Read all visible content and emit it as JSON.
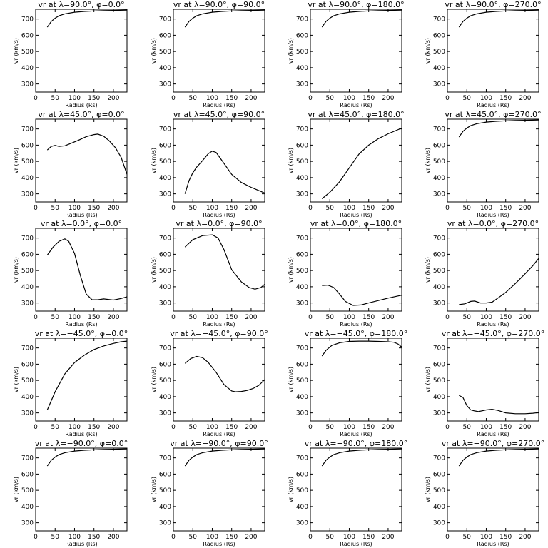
{
  "figure": {
    "xlabel": "Radius (Rs)",
    "ylabel": "vr (km/s)",
    "xticks": [
      0,
      50,
      100,
      150,
      200
    ],
    "yticks": [
      300,
      400,
      500,
      600,
      700
    ],
    "xlim": [
      0,
      235
    ],
    "ylim": [
      250,
      760
    ]
  },
  "chart_data": [
    {
      "type": "line",
      "title": "vr at λ=90.0°, φ=0.0°",
      "xlabel": "Radius (Rs)",
      "ylabel": "vr (km/s)",
      "xlim": [
        0,
        235
      ],
      "ylim": [
        250,
        760
      ],
      "series": [
        {
          "x": [
            30,
            40,
            50,
            60,
            75,
            100,
            125,
            150,
            175,
            200,
            235
          ],
          "y": [
            650,
            685,
            705,
            720,
            732,
            742,
            747,
            750,
            752,
            753,
            755
          ]
        }
      ]
    },
    {
      "type": "line",
      "title": "vr at λ=90.0°, φ=90.0°",
      "xlabel": "Radius (Rs)",
      "ylabel": "vr (km/s)",
      "xlim": [
        0,
        235
      ],
      "ylim": [
        250,
        760
      ],
      "series": [
        {
          "x": [
            30,
            40,
            50,
            60,
            75,
            100,
            125,
            150,
            175,
            200,
            235
          ],
          "y": [
            650,
            685,
            705,
            720,
            732,
            742,
            747,
            750,
            752,
            753,
            755
          ]
        }
      ]
    },
    {
      "type": "line",
      "title": "vr at λ=90.0°, φ=180.0°",
      "xlabel": "Radius (Rs)",
      "ylabel": "vr (km/s)",
      "xlim": [
        0,
        235
      ],
      "ylim": [
        250,
        760
      ],
      "series": [
        {
          "x": [
            30,
            40,
            50,
            60,
            75,
            100,
            125,
            150,
            175,
            200,
            235
          ],
          "y": [
            650,
            685,
            705,
            720,
            732,
            742,
            747,
            750,
            752,
            753,
            755
          ]
        }
      ]
    },
    {
      "type": "line",
      "title": "vr at λ=90.0°, φ=270.0°",
      "xlabel": "Radius (Rs)",
      "ylabel": "vr (km/s)",
      "xlim": [
        0,
        235
      ],
      "ylim": [
        250,
        760
      ],
      "series": [
        {
          "x": [
            30,
            40,
            50,
            60,
            75,
            100,
            125,
            150,
            175,
            200,
            235
          ],
          "y": [
            650,
            685,
            705,
            720,
            732,
            742,
            747,
            750,
            752,
            753,
            755
          ]
        }
      ]
    },
    {
      "type": "line",
      "title": "vr at λ=45.0°, φ=0.0°",
      "xlabel": "Radius (Rs)",
      "ylabel": "vr (km/s)",
      "xlim": [
        0,
        235
      ],
      "ylim": [
        250,
        760
      ],
      "series": [
        {
          "x": [
            30,
            40,
            50,
            60,
            75,
            90,
            110,
            130,
            150,
            160,
            175,
            190,
            205,
            220,
            235
          ],
          "y": [
            570,
            592,
            598,
            592,
            596,
            610,
            630,
            652,
            665,
            668,
            655,
            625,
            585,
            525,
            420
          ]
        }
      ]
    },
    {
      "type": "line",
      "title": "vr at λ=45.0°, φ=90.0°",
      "xlabel": "Radius (Rs)",
      "ylabel": "vr (km/s)",
      "xlim": [
        0,
        235
      ],
      "ylim": [
        250,
        760
      ],
      "series": [
        {
          "x": [
            30,
            40,
            50,
            60,
            75,
            90,
            100,
            110,
            125,
            150,
            175,
            200,
            220,
            235
          ],
          "y": [
            300,
            380,
            430,
            465,
            505,
            548,
            563,
            555,
            505,
            420,
            370,
            340,
            320,
            305
          ]
        }
      ]
    },
    {
      "type": "line",
      "title": "vr at λ=45.0°, φ=180.0°",
      "xlabel": "Radius (Rs)",
      "ylabel": "vr (km/s)",
      "xlim": [
        0,
        235
      ],
      "ylim": [
        250,
        760
      ],
      "series": [
        {
          "x": [
            30,
            50,
            75,
            100,
            125,
            150,
            175,
            200,
            235
          ],
          "y": [
            270,
            310,
            375,
            460,
            545,
            600,
            640,
            670,
            705
          ]
        }
      ]
    },
    {
      "type": "line",
      "title": "vr at λ=45.0°, φ=270.0°",
      "xlabel": "Radius (Rs)",
      "ylabel": "vr (km/s)",
      "xlim": [
        0,
        235
      ],
      "ylim": [
        250,
        760
      ],
      "series": [
        {
          "x": [
            30,
            40,
            50,
            60,
            75,
            100,
            125,
            150,
            175,
            200,
            235
          ],
          "y": [
            650,
            685,
            705,
            720,
            732,
            742,
            747,
            750,
            752,
            753,
            755
          ]
        }
      ]
    },
    {
      "type": "line",
      "title": "vr at λ=0.0°, φ=0.0°",
      "xlabel": "Radius (Rs)",
      "ylabel": "vr (km/s)",
      "xlim": [
        0,
        235
      ],
      "ylim": [
        250,
        760
      ],
      "series": [
        {
          "x": [
            30,
            45,
            60,
            75,
            85,
            100,
            115,
            130,
            145,
            160,
            175,
            200,
            220,
            235
          ],
          "y": [
            595,
            645,
            680,
            695,
            680,
            605,
            470,
            355,
            320,
            320,
            325,
            318,
            328,
            338
          ]
        }
      ]
    },
    {
      "type": "line",
      "title": "vr at λ=0.0°, φ=90.0°",
      "xlabel": "Radius (Rs)",
      "ylabel": "vr (km/s)",
      "xlim": [
        0,
        235
      ],
      "ylim": [
        250,
        760
      ],
      "series": [
        {
          "x": [
            30,
            50,
            75,
            100,
            115,
            130,
            150,
            175,
            195,
            210,
            225,
            235
          ],
          "y": [
            645,
            690,
            715,
            720,
            700,
            630,
            505,
            430,
            395,
            385,
            395,
            415
          ]
        }
      ]
    },
    {
      "type": "line",
      "title": "vr at λ=0.0°, φ=180.0°",
      "xlabel": "Radius (Rs)",
      "ylabel": "vr (km/s)",
      "xlim": [
        0,
        235
      ],
      "ylim": [
        250,
        760
      ],
      "series": [
        {
          "x": [
            30,
            45,
            60,
            75,
            90,
            110,
            130,
            150,
            175,
            200,
            235
          ],
          "y": [
            408,
            410,
            395,
            355,
            310,
            285,
            288,
            300,
            315,
            330,
            348
          ]
        }
      ]
    },
    {
      "type": "line",
      "title": "vr at λ=0.0°, φ=270.0°",
      "xlabel": "Radius (Rs)",
      "ylabel": "vr (km/s)",
      "xlim": [
        0,
        235
      ],
      "ylim": [
        250,
        760
      ],
      "series": [
        {
          "x": [
            30,
            45,
            60,
            70,
            85,
            100,
            115,
            130,
            150,
            175,
            200,
            220,
            235
          ],
          "y": [
            290,
            295,
            310,
            312,
            300,
            300,
            305,
            330,
            365,
            420,
            480,
            530,
            575
          ]
        }
      ]
    },
    {
      "type": "line",
      "title": "vr at λ=−45.0°, φ=0.0°",
      "xlabel": "Radius (Rs)",
      "ylabel": "vr (km/s)",
      "xlim": [
        0,
        235
      ],
      "ylim": [
        250,
        760
      ],
      "series": [
        {
          "x": [
            30,
            50,
            75,
            100,
            125,
            150,
            175,
            200,
            220,
            235
          ],
          "y": [
            318,
            430,
            540,
            610,
            655,
            690,
            712,
            728,
            738,
            742
          ]
        }
      ]
    },
    {
      "type": "line",
      "title": "vr at λ=−45.0°, φ=90.0°",
      "xlabel": "Radius (Rs)",
      "ylabel": "vr (km/s)",
      "xlim": [
        0,
        235
      ],
      "ylim": [
        250,
        760
      ],
      "series": [
        {
          "x": [
            30,
            45,
            60,
            75,
            90,
            110,
            130,
            150,
            160,
            175,
            190,
            205,
            220,
            235
          ],
          "y": [
            605,
            635,
            648,
            640,
            610,
            550,
            475,
            435,
            430,
            432,
            438,
            450,
            470,
            505
          ]
        }
      ]
    },
    {
      "type": "line",
      "title": "vr at λ=−45.0°, φ=180.0°",
      "xlabel": "Radius (Rs)",
      "ylabel": "vr (km/s)",
      "xlim": [
        0,
        235
      ],
      "ylim": [
        250,
        760
      ],
      "series": [
        {
          "x": [
            30,
            40,
            55,
            75,
            100,
            125,
            150,
            175,
            200,
            215,
            225,
            235
          ],
          "y": [
            650,
            685,
            715,
            732,
            740,
            742,
            742,
            740,
            738,
            735,
            725,
            705
          ]
        }
      ]
    },
    {
      "type": "line",
      "title": "vr at λ=−45.0°, φ=270.0°",
      "xlabel": "Radius (Rs)",
      "ylabel": "vr (km/s)",
      "xlim": [
        0,
        235
      ],
      "ylim": [
        250,
        760
      ],
      "series": [
        {
          "x": [
            30,
            40,
            50,
            60,
            70,
            80,
            100,
            115,
            130,
            150,
            175,
            200,
            220,
            235
          ],
          "y": [
            408,
            395,
            345,
            318,
            312,
            308,
            318,
            322,
            315,
            300,
            295,
            295,
            298,
            302
          ]
        }
      ]
    },
    {
      "type": "line",
      "title": "vr at λ=−90.0°, φ=0.0°",
      "xlabel": "Radius (Rs)",
      "ylabel": "vr (km/s)",
      "xlim": [
        0,
        235
      ],
      "ylim": [
        250,
        760
      ],
      "series": [
        {
          "x": [
            30,
            40,
            50,
            60,
            75,
            100,
            125,
            150,
            175,
            200,
            235
          ],
          "y": [
            650,
            685,
            705,
            720,
            732,
            742,
            747,
            750,
            752,
            753,
            755
          ]
        }
      ]
    },
    {
      "type": "line",
      "title": "vr at λ=−90.0°, φ=90.0°",
      "xlabel": "Radius (Rs)",
      "ylabel": "vr (km/s)",
      "xlim": [
        0,
        235
      ],
      "ylim": [
        250,
        760
      ],
      "series": [
        {
          "x": [
            30,
            40,
            50,
            60,
            75,
            100,
            125,
            150,
            175,
            200,
            235
          ],
          "y": [
            650,
            685,
            705,
            720,
            732,
            742,
            747,
            750,
            752,
            753,
            755
          ]
        }
      ]
    },
    {
      "type": "line",
      "title": "vr at λ=−90.0°, φ=180.0°",
      "xlabel": "Radius (Rs)",
      "ylabel": "vr (km/s)",
      "xlim": [
        0,
        235
      ],
      "ylim": [
        250,
        760
      ],
      "series": [
        {
          "x": [
            30,
            40,
            50,
            60,
            75,
            100,
            125,
            150,
            175,
            200,
            235
          ],
          "y": [
            650,
            685,
            705,
            720,
            732,
            742,
            747,
            750,
            752,
            753,
            755
          ]
        }
      ]
    },
    {
      "type": "line",
      "title": "vr at λ=−90.0°, φ=270.0°",
      "xlabel": "Radius (Rs)",
      "ylabel": "vr (km/s)",
      "xlim": [
        0,
        235
      ],
      "ylim": [
        250,
        760
      ],
      "series": [
        {
          "x": [
            30,
            40,
            50,
            60,
            75,
            100,
            125,
            150,
            175,
            200,
            235
          ],
          "y": [
            650,
            685,
            705,
            720,
            732,
            742,
            747,
            750,
            752,
            753,
            755
          ]
        }
      ]
    }
  ]
}
